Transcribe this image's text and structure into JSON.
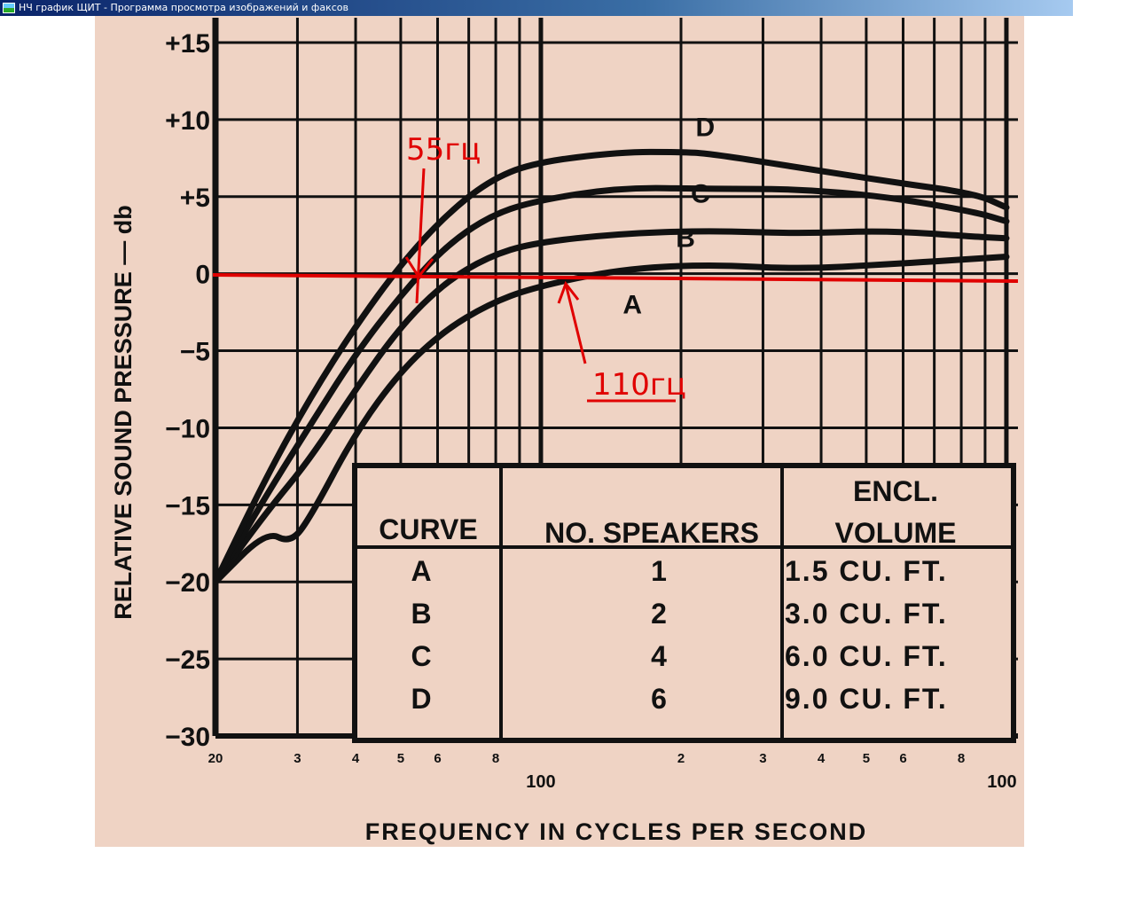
{
  "window": {
    "title": "НЧ график ЩИТ - Программа просмотра изображений и факсов",
    "icon": "image-viewer-icon"
  },
  "colors": {
    "paper": "#efd3c4",
    "ink": "#111111",
    "annotation": "#e00000"
  },
  "chart_data": {
    "type": "line",
    "xlabel": "FREQUENCY IN CYCLES PER SECOND",
    "ylabel": "RELATIVE SOUND PRESSURE — db",
    "xscale": "log",
    "xlim": [
      20,
      1000
    ],
    "ylim": [
      -30,
      15
    ],
    "grid": true,
    "yticks": [
      {
        "value": 15,
        "label": "+15"
      },
      {
        "value": 10,
        "label": "+10"
      },
      {
        "value": 5,
        "label": "+5"
      },
      {
        "value": 0,
        "label": "0"
      },
      {
        "value": -5,
        "label": "−5"
      },
      {
        "value": -10,
        "label": "−10"
      },
      {
        "value": -15,
        "label": "−15"
      },
      {
        "value": -20,
        "label": "−20"
      },
      {
        "value": -25,
        "label": "−25"
      },
      {
        "value": -30,
        "label": "−30"
      }
    ],
    "xticks": [
      {
        "value": 20,
        "label": "20"
      },
      {
        "value": 30,
        "label": "3"
      },
      {
        "value": 40,
        "label": "4"
      },
      {
        "value": 50,
        "label": "5"
      },
      {
        "value": 60,
        "label": "6"
      },
      {
        "value": 80,
        "label": "8"
      },
      {
        "value": 100,
        "label": "100"
      },
      {
        "value": 200,
        "label": "2"
      },
      {
        "value": 300,
        "label": "3"
      },
      {
        "value": 400,
        "label": "4"
      },
      {
        "value": 500,
        "label": "5"
      },
      {
        "value": 600,
        "label": "6"
      },
      {
        "value": 800,
        "label": "8"
      },
      {
        "value": 1000,
        "label": "100"
      }
    ],
    "series": [
      {
        "name": "A",
        "x": [
          20,
          25.7,
          29,
          32,
          40,
          50,
          62,
          77,
          96,
          148,
          230,
          357,
          553,
          1000
        ],
        "y": [
          -20,
          -16.7,
          -17.5,
          -15.8,
          -10.3,
          -6.3,
          -3.7,
          -2,
          -0.9,
          0.3,
          0.6,
          0.3,
          0.6,
          1.1
        ],
        "label_at": [
          150,
          -2
        ]
      },
      {
        "name": "B",
        "x": [
          20,
          25.7,
          32,
          40,
          50,
          62,
          77,
          96,
          148,
          230,
          357,
          553,
          858,
          1000
        ],
        "y": [
          -20,
          -15.5,
          -12,
          -7.5,
          -3.4,
          -0.6,
          1.1,
          2,
          2.6,
          2.8,
          2.6,
          2.8,
          2.4,
          2.3
        ],
        "label_at": [
          195,
          2.3
        ]
      },
      {
        "name": "C",
        "x": [
          20,
          25.7,
          32,
          40,
          50,
          62,
          77,
          96,
          148,
          230,
          357,
          553,
          858,
          1000
        ],
        "y": [
          -20,
          -14.4,
          -9.8,
          -5.2,
          -1.4,
          1.7,
          3.7,
          4.7,
          5.6,
          5.5,
          5.5,
          5,
          4,
          3.4
        ],
        "label_at": [
          210,
          5.2
        ]
      },
      {
        "name": "D",
        "x": [
          20,
          25.7,
          32,
          40,
          50,
          62,
          77,
          96,
          148,
          200,
          230,
          357,
          553,
          858,
          1000
        ],
        "y": [
          -20,
          -13.2,
          -8,
          -3.4,
          0.6,
          3.7,
          6,
          7.2,
          7.9,
          7.9,
          7.8,
          6.9,
          6,
          5.2,
          4.3
        ],
        "label_at": [
          215,
          9.5
        ]
      }
    ],
    "table": {
      "headers": [
        "CURVE",
        "NO. SPEAKERS",
        "ENCL.",
        "VOLUME"
      ],
      "rows": [
        {
          "curve": "A",
          "speakers": "1",
          "volume": "1.5 CU. FT."
        },
        {
          "curve": "B",
          "speakers": "2",
          "volume": "3.0 CU. FT."
        },
        {
          "curve": "C",
          "speakers": "4",
          "volume": "6.0 CU. FT."
        },
        {
          "curve": "D",
          "speakers": "6",
          "volume": "9.0 CU. FT."
        }
      ]
    },
    "annotations": [
      {
        "type": "hline",
        "y": 0,
        "color": "#e00000"
      },
      {
        "type": "arrow",
        "text": "55гц",
        "x": 55,
        "y": 0
      },
      {
        "type": "arrow",
        "text": "110гц",
        "x": 110,
        "y": 0,
        "underline": true
      }
    ]
  }
}
